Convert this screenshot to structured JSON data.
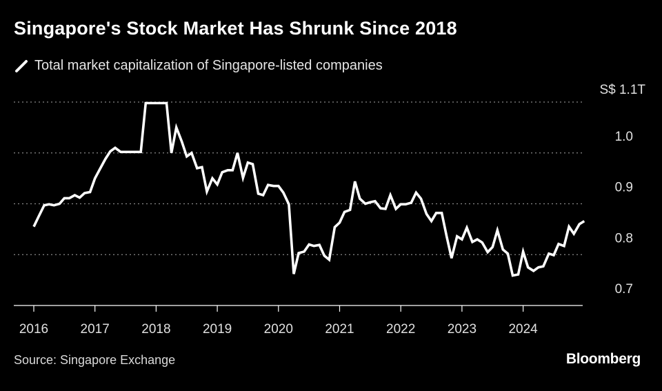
{
  "header": {
    "title": "Singapore's Stock Market Has Shrunk Since 2018"
  },
  "legend": {
    "label": "Total market capitalization of Singapore-listed companies",
    "color": "#ffffff"
  },
  "footer": {
    "source": "Source: Singapore Exchange",
    "logo": "Bloomberg"
  },
  "chart_data": {
    "type": "line",
    "title": "Singapore's Stock Market Has Shrunk Since 2018",
    "xlabel": "",
    "ylabel": "",
    "y_unit_label": "S$ 1.1T",
    "ylim": [
      0.7,
      1.1
    ],
    "xlim": [
      2016,
      2025.1
    ],
    "y_ticks": [
      {
        "value": 1.1,
        "label": "S$ 1.1T"
      },
      {
        "value": 1.0,
        "label": "1.0"
      },
      {
        "value": 0.9,
        "label": "0.9"
      },
      {
        "value": 0.8,
        "label": "0.8"
      },
      {
        "value": 0.7,
        "label": "0.7"
      }
    ],
    "x_ticks": [
      "2016",
      "2017",
      "2018",
      "2019",
      "2020",
      "2021",
      "2022",
      "2023",
      "2024"
    ],
    "grid": "horizontal dotted",
    "axis_side": "right",
    "series": [
      {
        "name": "Total market capitalization of Singapore-listed companies",
        "color": "#ffffff",
        "points": [
          [
            2016.0,
            0.855
          ],
          [
            2016.08,
            0.875
          ],
          [
            2016.17,
            0.897
          ],
          [
            2016.25,
            0.899
          ],
          [
            2016.33,
            0.897
          ],
          [
            2016.42,
            0.9
          ],
          [
            2016.5,
            0.911
          ],
          [
            2016.58,
            0.911
          ],
          [
            2016.67,
            0.917
          ],
          [
            2016.75,
            0.912
          ],
          [
            2016.83,
            0.921
          ],
          [
            2016.92,
            0.923
          ],
          [
            2017.0,
            0.95
          ],
          [
            2017.08,
            0.968
          ],
          [
            2017.17,
            0.988
          ],
          [
            2017.25,
            1.003
          ],
          [
            2017.33,
            1.01
          ],
          [
            2017.42,
            1.002
          ],
          [
            2017.5,
            1.002
          ],
          [
            2017.58,
            1.002
          ],
          [
            2017.67,
            1.002
          ],
          [
            2017.75,
            1.002
          ],
          [
            2017.83,
            1.098
          ],
          [
            2017.92,
            1.098
          ],
          [
            2018.0,
            1.098
          ],
          [
            2018.08,
            1.098
          ],
          [
            2018.17,
            1.098
          ],
          [
            2018.25,
            1.0
          ],
          [
            2018.33,
            1.05
          ],
          [
            2018.42,
            1.022
          ],
          [
            2018.5,
            0.993
          ],
          [
            2018.58,
            1.0
          ],
          [
            2018.67,
            0.97
          ],
          [
            2018.75,
            0.972
          ],
          [
            2018.83,
            0.924
          ],
          [
            2018.92,
            0.95
          ],
          [
            2019.0,
            0.938
          ],
          [
            2019.08,
            0.962
          ],
          [
            2019.17,
            0.966
          ],
          [
            2019.25,
            0.966
          ],
          [
            2019.33,
            1.0
          ],
          [
            2019.42,
            0.951
          ],
          [
            2019.5,
            0.981
          ],
          [
            2019.58,
            0.978
          ],
          [
            2019.67,
            0.92
          ],
          [
            2019.75,
            0.917
          ],
          [
            2019.83,
            0.937
          ],
          [
            2019.92,
            0.935
          ],
          [
            2020.0,
            0.935
          ],
          [
            2020.08,
            0.922
          ],
          [
            2020.17,
            0.899
          ],
          [
            2020.25,
            0.762
          ],
          [
            2020.33,
            0.803
          ],
          [
            2020.42,
            0.806
          ],
          [
            2020.5,
            0.82
          ],
          [
            2020.58,
            0.817
          ],
          [
            2020.67,
            0.819
          ],
          [
            2020.75,
            0.798
          ],
          [
            2020.83,
            0.79
          ],
          [
            2020.92,
            0.854
          ],
          [
            2021.0,
            0.863
          ],
          [
            2021.08,
            0.884
          ],
          [
            2021.17,
            0.888
          ],
          [
            2021.25,
            0.944
          ],
          [
            2021.33,
            0.91
          ],
          [
            2021.42,
            0.9
          ],
          [
            2021.5,
            0.903
          ],
          [
            2021.58,
            0.905
          ],
          [
            2021.67,
            0.891
          ],
          [
            2021.75,
            0.89
          ],
          [
            2021.83,
            0.917
          ],
          [
            2021.92,
            0.89
          ],
          [
            2022.0,
            0.899
          ],
          [
            2022.08,
            0.899
          ],
          [
            2022.17,
            0.902
          ],
          [
            2022.25,
            0.922
          ],
          [
            2022.33,
            0.91
          ],
          [
            2022.42,
            0.88
          ],
          [
            2022.5,
            0.866
          ],
          [
            2022.58,
            0.882
          ],
          [
            2022.67,
            0.882
          ],
          [
            2022.75,
            0.836
          ],
          [
            2022.83,
            0.793
          ],
          [
            2022.92,
            0.836
          ],
          [
            2023.0,
            0.83
          ],
          [
            2023.08,
            0.853
          ],
          [
            2023.17,
            0.825
          ],
          [
            2023.25,
            0.83
          ],
          [
            2023.33,
            0.824
          ],
          [
            2023.42,
            0.805
          ],
          [
            2023.5,
            0.815
          ],
          [
            2023.58,
            0.848
          ],
          [
            2023.67,
            0.81
          ],
          [
            2023.75,
            0.802
          ],
          [
            2023.83,
            0.759
          ],
          [
            2023.92,
            0.761
          ],
          [
            2024.0,
            0.806
          ],
          [
            2024.08,
            0.775
          ],
          [
            2024.17,
            0.768
          ],
          [
            2024.25,
            0.775
          ],
          [
            2024.33,
            0.777
          ],
          [
            2024.42,
            0.802
          ],
          [
            2024.5,
            0.799
          ],
          [
            2024.58,
            0.821
          ],
          [
            2024.67,
            0.817
          ],
          [
            2024.75,
            0.855
          ],
          [
            2024.83,
            0.841
          ],
          [
            2024.92,
            0.86
          ],
          [
            2025.0,
            0.866
          ]
        ]
      }
    ]
  }
}
